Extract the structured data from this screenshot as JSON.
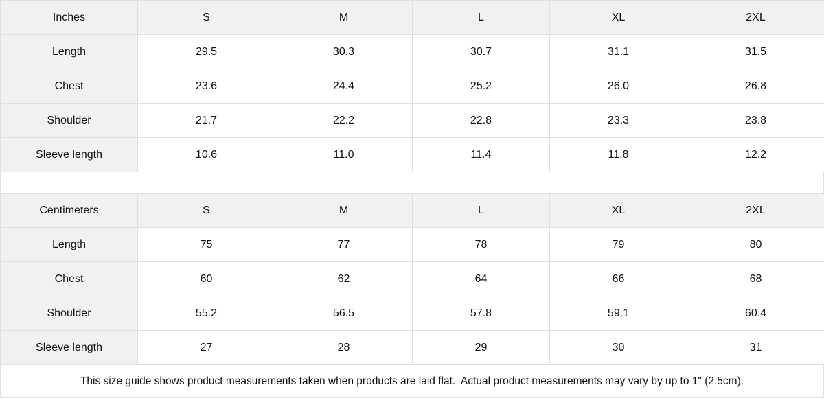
{
  "colors": {
    "header_bg": "#f1f1f1",
    "border": "#e0e0e0",
    "text": "#111111",
    "cell_bg": "#ffffff"
  },
  "tables": [
    {
      "unit_label": "Inches",
      "columns": [
        "S",
        "M",
        "L",
        "XL",
        "2XL"
      ],
      "rows": [
        {
          "label": "Length",
          "values": [
            "29.5",
            "30.3",
            "30.7",
            "31.1",
            "31.5"
          ]
        },
        {
          "label": "Chest",
          "values": [
            "23.6",
            "24.4",
            "25.2",
            "26.0",
            "26.8"
          ]
        },
        {
          "label": "Shoulder",
          "values": [
            "21.7",
            "22.2",
            "22.8",
            "23.3",
            "23.8"
          ]
        },
        {
          "label": "Sleeve length",
          "values": [
            "10.6",
            "11.0",
            "11.4",
            "11.8",
            "12.2"
          ]
        }
      ]
    },
    {
      "unit_label": "Centimeters",
      "columns": [
        "S",
        "M",
        "L",
        "XL",
        "2XL"
      ],
      "rows": [
        {
          "label": "Length",
          "values": [
            "75",
            "77",
            "78",
            "79",
            "80"
          ]
        },
        {
          "label": "Chest",
          "values": [
            "60",
            "62",
            "64",
            "66",
            "68"
          ]
        },
        {
          "label": "Shoulder",
          "values": [
            "55.2",
            "56.5",
            "57.8",
            "59.1",
            "60.4"
          ]
        },
        {
          "label": "Sleeve length",
          "values": [
            "27",
            "28",
            "29",
            "30",
            "31"
          ]
        }
      ]
    }
  ],
  "footer": {
    "note": "This size guide shows product measurements taken when products are laid flat.  Actual product measurements may vary by up to 1\" (2.5cm)."
  }
}
